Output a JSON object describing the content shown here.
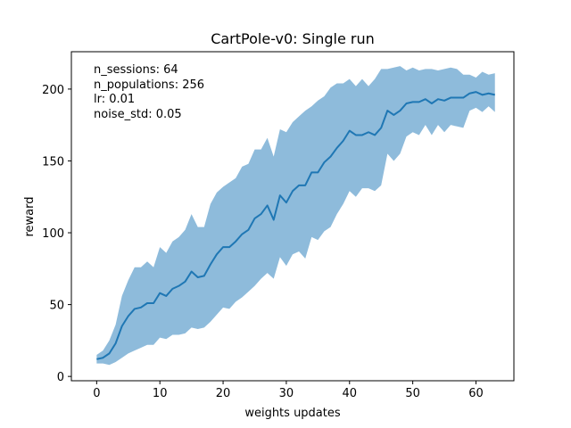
{
  "chart_data": {
    "type": "line",
    "title": "CartPole-v0: Single run",
    "xlabel": "weights updates",
    "ylabel": "reward",
    "xlim": [
      -4,
      66
    ],
    "ylim": [
      -3,
      226
    ],
    "xticks": [
      0,
      10,
      20,
      30,
      40,
      50,
      60
    ],
    "yticks": [
      0,
      50,
      100,
      150,
      200
    ],
    "grid": false,
    "annotations": [
      "n_sessions: 64",
      "n_populations: 256",
      "lr: 0.01",
      "noise_std: 0.05"
    ],
    "colors": {
      "line": "#1f77b4",
      "band": "#8ebbdb",
      "axes": "#000000"
    },
    "x": [
      0,
      1,
      2,
      3,
      4,
      5,
      6,
      7,
      8,
      9,
      10,
      11,
      12,
      13,
      14,
      15,
      16,
      17,
      18,
      19,
      20,
      21,
      22,
      23,
      24,
      25,
      26,
      27,
      28,
      29,
      30,
      31,
      32,
      33,
      34,
      35,
      36,
      37,
      38,
      39,
      40,
      41,
      42,
      43,
      44,
      45,
      46,
      47,
      48,
      49,
      50,
      51,
      52,
      53,
      54,
      55,
      56,
      57,
      58,
      59,
      60,
      61,
      62,
      63
    ],
    "series": [
      {
        "mean": [
          12,
          13,
          16,
          23,
          35,
          42,
          47,
          48,
          51,
          51,
          58,
          56,
          61,
          63,
          66,
          73,
          69,
          70,
          78,
          85,
          90,
          90,
          94,
          99,
          102,
          110,
          113,
          119,
          109,
          126,
          121,
          129,
          133,
          133,
          142,
          142,
          149,
          153,
          159,
          164,
          171,
          168,
          168,
          170,
          168,
          173,
          185,
          182,
          185,
          190,
          191,
          191,
          193,
          190,
          193,
          192,
          194,
          194,
          194,
          197,
          198,
          196,
          197,
          196
        ],
        "upper": [
          15,
          18,
          25,
          36,
          56,
          67,
          76,
          76,
          80,
          76,
          90,
          86,
          94,
          97,
          102,
          113,
          104,
          104,
          120,
          128,
          132,
          135,
          138,
          146,
          148,
          158,
          158,
          166,
          153,
          172,
          170,
          177,
          181,
          185,
          188,
          192,
          195,
          201,
          204,
          204,
          207,
          202,
          207,
          202,
          207,
          214,
          214,
          215,
          216,
          213,
          215,
          213,
          214,
          214,
          213,
          214,
          215,
          214,
          210,
          210,
          208,
          212,
          210,
          211
        ],
        "lower": [
          9,
          9,
          8,
          10,
          13,
          16,
          18,
          20,
          22,
          22,
          27,
          26,
          29,
          29,
          30,
          34,
          33,
          34,
          38,
          43,
          48,
          47,
          52,
          55,
          59,
          63,
          68,
          72,
          68,
          83,
          77,
          85,
          87,
          82,
          97,
          95,
          101,
          104,
          113,
          120,
          129,
          125,
          131,
          131,
          129,
          133,
          155,
          150,
          155,
          167,
          170,
          168,
          175,
          168,
          175,
          170,
          175,
          174,
          173,
          185,
          187,
          184,
          188,
          184
        ]
      }
    ]
  }
}
